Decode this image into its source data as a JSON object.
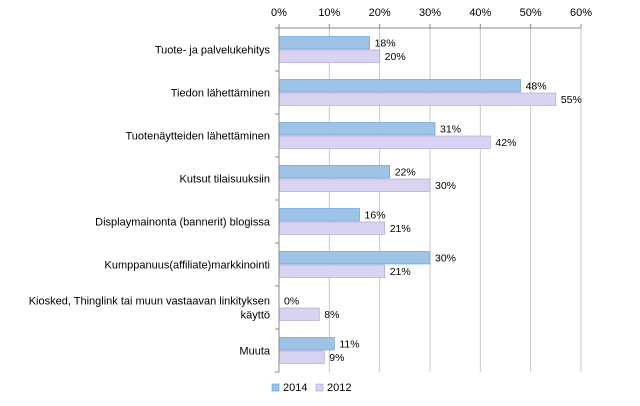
{
  "chart_data": {
    "type": "bar",
    "orientation": "horizontal",
    "x_axis_position": "top",
    "categories": [
      [
        "Tuote- ja palvelukehitys"
      ],
      [
        "Tiedon lähettäminen"
      ],
      [
        "Tuotenäytteiden lähettäminen"
      ],
      [
        "Kutsut tilaisuuksiin"
      ],
      [
        "Displaymainonta (bannerit) blogissa"
      ],
      [
        "Kumppanuus(affiliate)markkinointi"
      ],
      [
        "Kiosked, Thinglink tai muun vastaavan linkityksen",
        "käyttö"
      ],
      [
        "Muuta"
      ]
    ],
    "series": [
      {
        "name": "2014",
        "color": "#9DC3E6",
        "border": "#5B9BD5",
        "values": [
          18,
          48,
          31,
          22,
          16,
          30,
          0,
          11
        ]
      },
      {
        "name": "2012",
        "color": "#D9D2F0",
        "border": "#A99BD9",
        "values": [
          20,
          55,
          42,
          30,
          21,
          21,
          8,
          9
        ]
      }
    ],
    "value_suffix": "%",
    "xlim": [
      0,
      60
    ],
    "xticks": [
      0,
      10,
      20,
      30,
      40,
      50,
      60
    ],
    "xtick_labels": [
      "0%",
      "10%",
      "20%",
      "30%",
      "40%",
      "50%",
      "60%"
    ],
    "gridlines": "vertical",
    "legend_position": "bottom-left",
    "title": "",
    "xlabel": "",
    "ylabel": ""
  }
}
